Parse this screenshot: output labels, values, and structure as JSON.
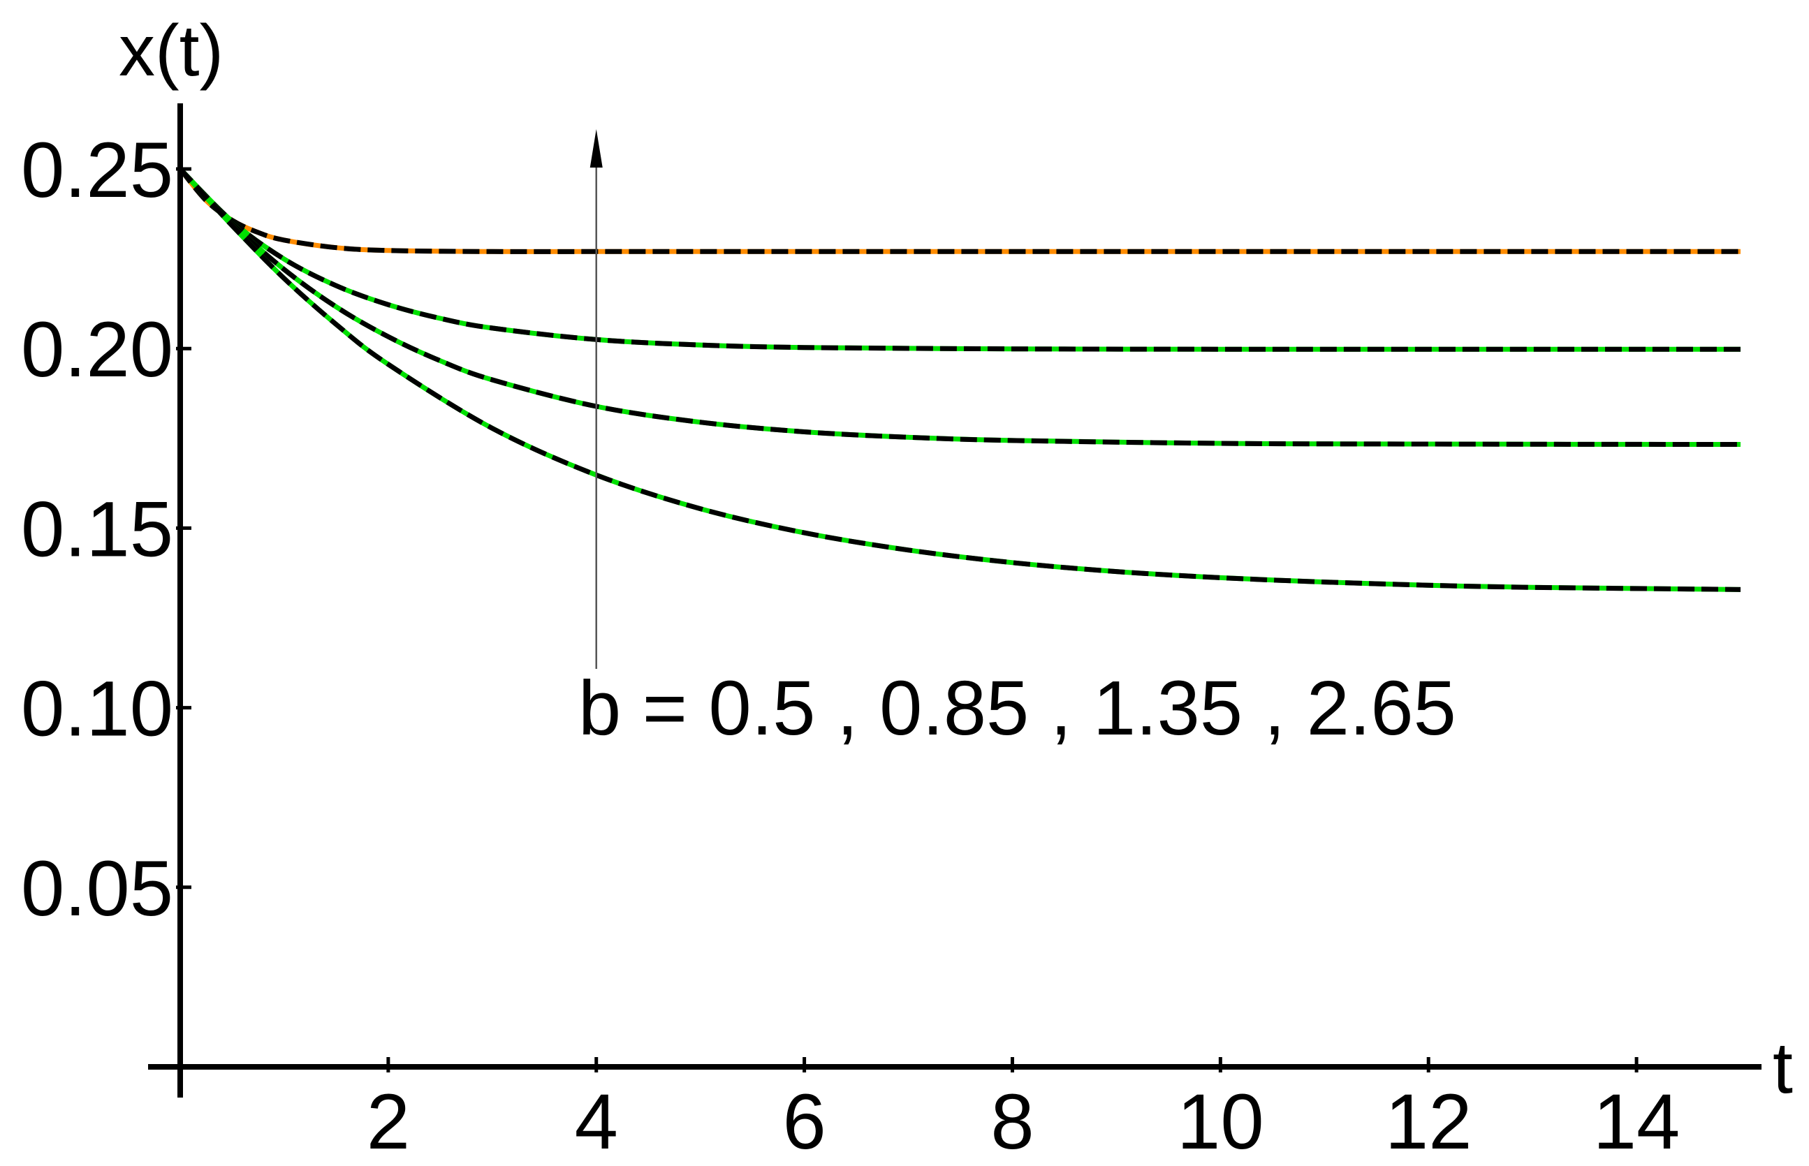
{
  "chart_data": {
    "type": "line",
    "title": "",
    "xlabel": "t",
    "ylabel": "x(t)",
    "xlim": [
      0,
      15
    ],
    "ylim": [
      0,
      0.27
    ],
    "x_ticks": [
      2,
      4,
      6,
      8,
      10,
      12,
      14
    ],
    "x_tick_labels": [
      "2",
      "4",
      "6",
      "8",
      "10",
      "12",
      "14"
    ],
    "y_ticks": [
      0.05,
      0.1,
      0.15,
      0.2,
      0.25
    ],
    "y_tick_labels": [
      "0.05",
      "0.10",
      "0.15",
      "0.20",
      "0.25"
    ],
    "grid": false,
    "legend": "none",
    "annotation": "b = 0.5 , 0.85 , 1.35 , 2.65",
    "series": [
      {
        "x": [
          0,
          0.25,
          0.5,
          0.75,
          1,
          1.5,
          2,
          3,
          4,
          6,
          8,
          10,
          12,
          15
        ],
        "y": [
          0.25,
          0.2412,
          0.2357,
          0.2323,
          0.2302,
          0.2281,
          0.2273,
          0.227,
          0.227,
          0.227,
          0.227,
          0.227,
          0.227,
          0.227
        ],
        "color": "#ff8c00"
      },
      {
        "x": [
          0,
          0.5,
          1,
          1.5,
          2,
          2.5,
          3,
          4,
          5,
          6,
          8,
          10,
          12,
          15
        ],
        "y": [
          0.25,
          0.2354,
          0.2249,
          0.2175,
          0.2122,
          0.2084,
          0.2057,
          0.2025,
          0.201,
          0.2003,
          0.1999,
          0.1998,
          0.1998,
          0.1998
        ],
        "color": "#00e000"
      },
      {
        "x": [
          0,
          0.5,
          1,
          1.5,
          2,
          2.5,
          3,
          4,
          5,
          6,
          7,
          8,
          10,
          12,
          15
        ],
        "y": [
          0.25,
          0.2348,
          0.222,
          0.2116,
          0.2033,
          0.1966,
          0.1913,
          0.1839,
          0.1795,
          0.1768,
          0.1753,
          0.1744,
          0.1736,
          0.1734,
          0.1733
        ],
        "color": "#00e000"
      },
      {
        "x": [
          0,
          0.5,
          1,
          1.5,
          2,
          3,
          4,
          5,
          6,
          7,
          8,
          9,
          10,
          11,
          12,
          13,
          15
        ],
        "y": [
          0.25,
          0.2342,
          0.2195,
          0.2067,
          0.1956,
          0.1778,
          0.1648,
          0.1554,
          0.1487,
          0.1439,
          0.1404,
          0.1379,
          0.1362,
          0.135,
          0.1341,
          0.1335,
          0.1329
        ],
        "color": "#00e000"
      }
    ]
  }
}
